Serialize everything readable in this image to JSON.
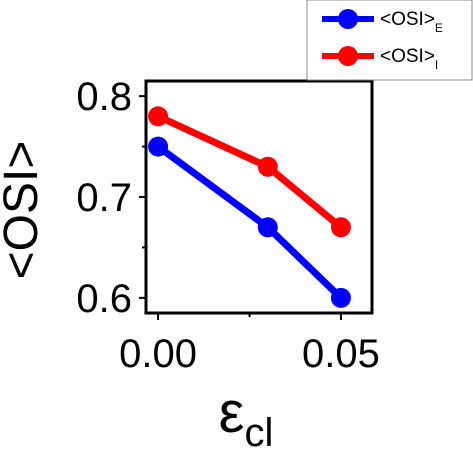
{
  "chart_data": {
    "type": "line",
    "x": [
      0.0,
      0.03,
      0.05
    ],
    "series": [
      {
        "name": "<OSI>E",
        "name_main": "<OSI>",
        "name_sub": "E",
        "color": "#0000ff",
        "values": [
          0.75,
          0.67,
          0.6
        ]
      },
      {
        "name": "<OSI>I",
        "name_main": "<OSI>",
        "name_sub": "I",
        "color": "#ff0000",
        "values": [
          0.78,
          0.73,
          0.67
        ]
      }
    ],
    "title": "",
    "xlabel": "εcl",
    "xlabel_main": "ε",
    "xlabel_sub": "cl",
    "ylabel": "<OSI>",
    "xlim": [
      -0.0033,
      0.0585
    ],
    "ylim": [
      0.585,
      0.815
    ],
    "xticks": [
      0.0,
      0.05
    ],
    "xtick_labels": [
      "0.00",
      "0.05"
    ],
    "yticks": [
      0.6,
      0.7,
      0.8
    ],
    "ytick_labels": [
      "0.6",
      "0.7",
      "0.8"
    ],
    "grid": false,
    "legend_position": "top-right, outside plot area"
  }
}
